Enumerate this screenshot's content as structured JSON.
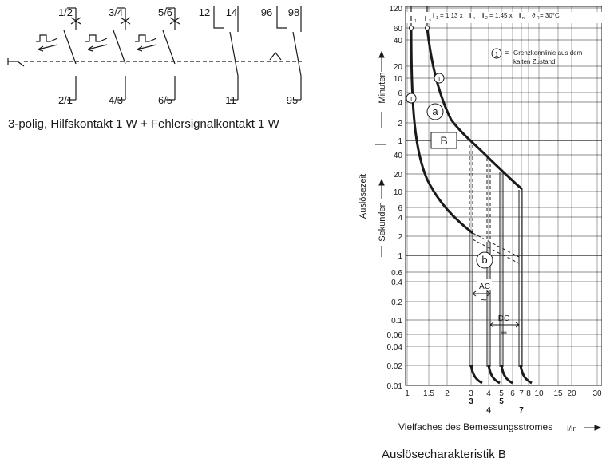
{
  "wiring": {
    "top_terminals": [
      "1/2",
      "3/4",
      "5/6",
      "12",
      "14",
      "96",
      "98"
    ],
    "bottom_terminals": [
      "2/1",
      "4/3",
      "6/5",
      "11",
      "95"
    ],
    "caption": "3-polig, Hilfskontakt 1 W + Fehlersignalkontakt 1 W"
  },
  "curve": {
    "caption": "Auslösecharakteristik B",
    "xlabel": "Vielfaches des Bemessungsstromes",
    "xunit": "I/In",
    "ylabel_outer": "Auslösezeit",
    "ylabel_minutes": "Minuten",
    "ylabel_seconds": "Sekunden",
    "legend_num": "1",
    "legend_eq": "=",
    "legend_line1": "Grenzkennlinie aus dem",
    "legend_line2": "kalten Zustand",
    "i1_label": "I",
    "i1_sub": "1",
    "i2_label": "I",
    "i2_sub": "2",
    "eq1_a": "= 1.13 x ",
    "eq1_i": "I",
    "eq1_sub": "n",
    "eq2_a": "= 1.45 x ",
    "eq2_i": "I",
    "eq2_sub": "n",
    "temp": "ϑ",
    "temp_sub": "R",
    "temp_val": " = 30°C",
    "region_a": "a",
    "region_b": "b",
    "box_B": "B",
    "ac_label": "AC",
    "ac_symbol": "~",
    "dc_label": "DC",
    "dc_symbol": "═",
    "marker_1": "1",
    "x_ticks": [
      "1",
      "1.5",
      "2",
      "3",
      "4",
      "5",
      "6",
      "7",
      "8",
      "10",
      "15",
      "20",
      "30"
    ],
    "x_sub_ticks": [
      "3",
      "4",
      "5",
      "7"
    ],
    "y_ticks_minutes": [
      "120",
      "60",
      "40",
      "20",
      "10",
      "6",
      "4",
      "2",
      "1"
    ],
    "y_ticks_seconds": [
      "40",
      "20",
      "10",
      "6",
      "4",
      "2",
      "1",
      "0.6",
      "0.4",
      "0.2",
      "0.1",
      "0.06",
      "0.04",
      "0.02",
      "0.01"
    ]
  },
  "colors": {
    "line": "#1a1a1a",
    "grid": "#1a1a1a",
    "background": "#ffffff"
  }
}
